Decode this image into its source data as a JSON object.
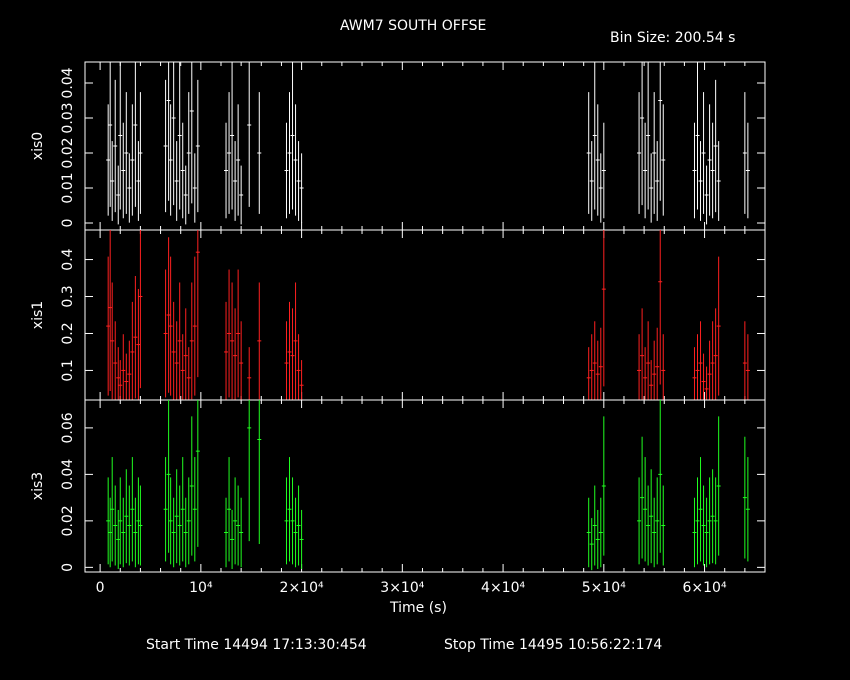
{
  "title": "AWM7 SOUTH OFFSE",
  "bin_size": "Bin Size: 200.54 s",
  "xlabel": "Time (s)",
  "start_time": "Start Time 14494 17:13:30:454",
  "stop_time": "Stop Time 14495 10:56:22:174",
  "chart_data": {
    "type": "scatter",
    "title": "AWM7 SOUTH OFFSE",
    "xlabel": "Time (s)",
    "xlim": [
      -1500,
      66000
    ],
    "x_ticks": [
      0,
      10000,
      20000,
      30000,
      40000,
      50000,
      60000
    ],
    "x_tick_labels": [
      "0",
      "10⁴",
      "2×10⁴",
      "3×10⁴",
      "4×10⁴",
      "5×10⁴",
      "6×10⁴"
    ],
    "series": [
      {
        "name": "xis0",
        "color": "#ffffff",
        "ylim": [
          -0.002,
          0.046
        ],
        "y_ticks": [
          0,
          0.01,
          0.02,
          0.03,
          0.04
        ],
        "y_tick_labels": [
          "0",
          "0.01",
          "0.02",
          "0.03",
          "0.04"
        ],
        "points": [
          [
            800,
            0.018
          ],
          [
            1000,
            0.028
          ],
          [
            1200,
            0.012
          ],
          [
            1500,
            0.022
          ],
          [
            1800,
            0.008
          ],
          [
            2000,
            0.025
          ],
          [
            2300,
            0.015
          ],
          [
            2600,
            0.02
          ],
          [
            2900,
            0.01
          ],
          [
            3200,
            0.018
          ],
          [
            3500,
            0.028
          ],
          [
            3800,
            0.012
          ],
          [
            4000,
            0.02
          ],
          [
            6500,
            0.022
          ],
          [
            6800,
            0.035
          ],
          [
            7000,
            0.018
          ],
          [
            7300,
            0.03
          ],
          [
            7600,
            0.012
          ],
          [
            7900,
            0.025
          ],
          [
            8200,
            0.015
          ],
          [
            8500,
            0.008
          ],
          [
            8800,
            0.02
          ],
          [
            9100,
            0.032
          ],
          [
            9400,
            0.01
          ],
          [
            9700,
            0.022
          ],
          [
            12500,
            0.015
          ],
          [
            12800,
            0.02
          ],
          [
            13100,
            0.025
          ],
          [
            13400,
            0.012
          ],
          [
            13700,
            0.018
          ],
          [
            14000,
            0.008
          ],
          [
            14800,
            0.028
          ],
          [
            15800,
            0.02
          ],
          [
            18500,
            0.015
          ],
          [
            18800,
            0.02
          ],
          [
            19100,
            0.025
          ],
          [
            19400,
            0.018
          ],
          [
            19700,
            0.012
          ],
          [
            20000,
            0.01
          ],
          [
            48500,
            0.02
          ],
          [
            48800,
            0.012
          ],
          [
            49100,
            0.025
          ],
          [
            49400,
            0.018
          ],
          [
            49700,
            0.01
          ],
          [
            50000,
            0.015
          ],
          [
            53500,
            0.02
          ],
          [
            53800,
            0.03
          ],
          [
            54100,
            0.015
          ],
          [
            54400,
            0.025
          ],
          [
            54700,
            0.01
          ],
          [
            55000,
            0.02
          ],
          [
            55300,
            0.012
          ],
          [
            55600,
            0.035
          ],
          [
            55900,
            0.018
          ],
          [
            59000,
            0.015
          ],
          [
            59300,
            0.025
          ],
          [
            59600,
            0.012
          ],
          [
            59900,
            0.02
          ],
          [
            60200,
            0.008
          ],
          [
            60500,
            0.018
          ],
          [
            60800,
            0.015
          ],
          [
            61100,
            0.022
          ],
          [
            61400,
            0.012
          ],
          [
            64000,
            0.02
          ],
          [
            64300,
            0.015
          ]
        ]
      },
      {
        "name": "xis1",
        "color": "#ff2020",
        "ylim": [
          0.02,
          0.48
        ],
        "y_ticks": [
          0.1,
          0.2,
          0.3,
          0.4
        ],
        "y_tick_labels": [
          "0.1",
          "0.2",
          "0.3",
          "0.4"
        ],
        "points": [
          [
            800,
            0.22
          ],
          [
            1000,
            0.27
          ],
          [
            1200,
            0.18
          ],
          [
            1500,
            0.12
          ],
          [
            1800,
            0.08
          ],
          [
            2000,
            0.06
          ],
          [
            2300,
            0.1
          ],
          [
            2600,
            0.07
          ],
          [
            2900,
            0.09
          ],
          [
            3200,
            0.15
          ],
          [
            3500,
            0.19
          ],
          [
            3800,
            0.17
          ],
          [
            4000,
            0.3
          ],
          [
            6500,
            0.2
          ],
          [
            6800,
            0.25
          ],
          [
            7000,
            0.22
          ],
          [
            7300,
            0.15
          ],
          [
            7600,
            0.12
          ],
          [
            7900,
            0.18
          ],
          [
            8200,
            0.1
          ],
          [
            8500,
            0.14
          ],
          [
            8800,
            0.08
          ],
          [
            9100,
            0.18
          ],
          [
            9400,
            0.22
          ],
          [
            9700,
            0.42
          ],
          [
            12500,
            0.15
          ],
          [
            12800,
            0.2
          ],
          [
            13100,
            0.18
          ],
          [
            13400,
            0.14
          ],
          [
            13700,
            0.2
          ],
          [
            14000,
            0.12
          ],
          [
            14800,
            0.08
          ],
          [
            15800,
            0.18
          ],
          [
            18500,
            0.12
          ],
          [
            18800,
            0.15
          ],
          [
            19100,
            0.14
          ],
          [
            19400,
            0.18
          ],
          [
            19700,
            0.1
          ],
          [
            20000,
            0.06
          ],
          [
            48500,
            0.08
          ],
          [
            48800,
            0.1
          ],
          [
            49100,
            0.12
          ],
          [
            49400,
            0.09
          ],
          [
            49700,
            0.11
          ],
          [
            50000,
            0.32
          ],
          [
            53500,
            0.1
          ],
          [
            53800,
            0.14
          ],
          [
            54100,
            0.08
          ],
          [
            54400,
            0.12
          ],
          [
            54700,
            0.06
          ],
          [
            55000,
            0.09
          ],
          [
            55300,
            0.11
          ],
          [
            55600,
            0.34
          ],
          [
            55900,
            0.1
          ],
          [
            59000,
            0.08
          ],
          [
            59300,
            0.1
          ],
          [
            59600,
            0.12
          ],
          [
            59900,
            0.07
          ],
          [
            60200,
            0.05
          ],
          [
            60500,
            0.09
          ],
          [
            60800,
            0.12
          ],
          [
            61100,
            0.14
          ],
          [
            61400,
            0.22
          ],
          [
            64000,
            0.12
          ],
          [
            64300,
            0.1
          ]
        ]
      },
      {
        "name": "xis3",
        "color": "#20ff20",
        "ylim": [
          -0.002,
          0.072
        ],
        "y_ticks": [
          0,
          0.02,
          0.04,
          0.06
        ],
        "y_tick_labels": [
          "0",
          "0.02",
          "0.04",
          "0.06"
        ],
        "points": [
          [
            800,
            0.02
          ],
          [
            1000,
            0.015
          ],
          [
            1200,
            0.025
          ],
          [
            1500,
            0.018
          ],
          [
            1800,
            0.012
          ],
          [
            2000,
            0.02
          ],
          [
            2300,
            0.015
          ],
          [
            2600,
            0.022
          ],
          [
            2900,
            0.018
          ],
          [
            3200,
            0.025
          ],
          [
            3500,
            0.015
          ],
          [
            3800,
            0.02
          ],
          [
            4000,
            0.018
          ],
          [
            6500,
            0.025
          ],
          [
            6800,
            0.04
          ],
          [
            7000,
            0.02
          ],
          [
            7300,
            0.015
          ],
          [
            7600,
            0.022
          ],
          [
            7900,
            0.018
          ],
          [
            8200,
            0.025
          ],
          [
            8500,
            0.015
          ],
          [
            8800,
            0.02
          ],
          [
            9100,
            0.035
          ],
          [
            9400,
            0.025
          ],
          [
            9700,
            0.05
          ],
          [
            12500,
            0.015
          ],
          [
            12800,
            0.025
          ],
          [
            13100,
            0.012
          ],
          [
            13400,
            0.02
          ],
          [
            13700,
            0.018
          ],
          [
            14000,
            0.015
          ],
          [
            14800,
            0.06
          ],
          [
            15800,
            0.055
          ],
          [
            18500,
            0.02
          ],
          [
            18800,
            0.025
          ],
          [
            19100,
            0.02
          ],
          [
            19400,
            0.015
          ],
          [
            19700,
            0.018
          ],
          [
            20000,
            0.012
          ],
          [
            48500,
            0.015
          ],
          [
            48800,
            0.01
          ],
          [
            49100,
            0.018
          ],
          [
            49400,
            0.012
          ],
          [
            49700,
            0.015
          ],
          [
            50000,
            0.035
          ],
          [
            53500,
            0.02
          ],
          [
            53800,
            0.03
          ],
          [
            54100,
            0.025
          ],
          [
            54400,
            0.018
          ],
          [
            54700,
            0.022
          ],
          [
            55000,
            0.015
          ],
          [
            55300,
            0.02
          ],
          [
            55600,
            0.04
          ],
          [
            55900,
            0.018
          ],
          [
            59000,
            0.015
          ],
          [
            59300,
            0.02
          ],
          [
            59600,
            0.025
          ],
          [
            59900,
            0.018
          ],
          [
            60200,
            0.015
          ],
          [
            60500,
            0.02
          ],
          [
            60800,
            0.022
          ],
          [
            61100,
            0.02
          ],
          [
            61400,
            0.035
          ],
          [
            64000,
            0.03
          ],
          [
            64300,
            0.025
          ]
        ]
      }
    ]
  }
}
